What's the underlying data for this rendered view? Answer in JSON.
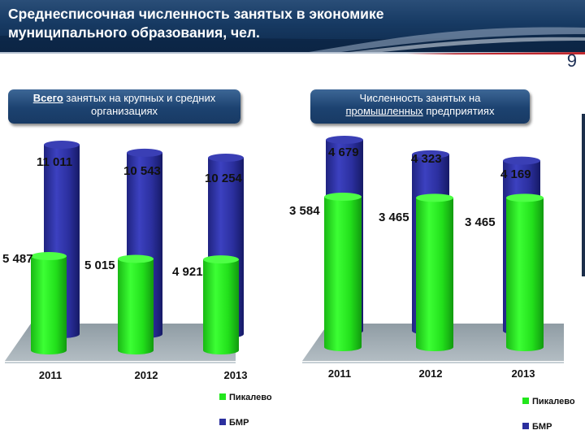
{
  "header": {
    "title_line1": "Среднесписочная численность занятых в экономике",
    "title_line2": "муниципального образования, чел.",
    "page_number": "9"
  },
  "colors": {
    "pikalevo": "#22e61c",
    "bmr": "#2b2f9e",
    "floor": "#9aa7ae",
    "label_bg": "#1c4270"
  },
  "panels": [
    {
      "label_bold_underlined": "Всего",
      "label_rest_line1": " занятых на крупных и средних",
      "label_line2": "организациях"
    },
    {
      "label_line1": "Численность занятых на",
      "label_underlined": "промышленных",
      "label_rest_line2": " предприятиях"
    }
  ],
  "chart_data": [
    {
      "type": "bar",
      "categories": [
        "2011",
        "2012",
        "2013"
      ],
      "series": [
        {
          "name": "Пикалево",
          "values": [
            5487,
            5015,
            4921
          ],
          "labels": [
            "5 487",
            "5 015",
            "4 921"
          ]
        },
        {
          "name": "БМР",
          "values": [
            11011,
            10543,
            10254
          ],
          "labels": [
            "11 011",
            "10 543",
            "10 254"
          ]
        }
      ],
      "ylim": [
        0,
        12000
      ],
      "legend": "bottom"
    },
    {
      "type": "bar",
      "categories": [
        "2011",
        "2012",
        "2013"
      ],
      "series": [
        {
          "name": "Пикалево",
          "values": [
            3584,
            3465,
            3465
          ],
          "labels": [
            "3 584",
            "3 465",
            "3 465"
          ]
        },
        {
          "name": "БМР",
          "values": [
            4679,
            4323,
            4169
          ],
          "labels": [
            "4 679",
            "4 323",
            "4 169"
          ]
        }
      ],
      "ylim": [
        0,
        5000
      ],
      "legend": "bottom"
    }
  ]
}
